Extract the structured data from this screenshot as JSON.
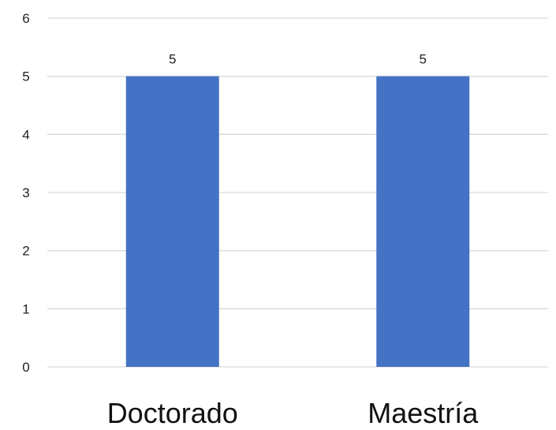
{
  "chart_data": {
    "type": "bar",
    "categories": [
      "Doctorado",
      "Maestría"
    ],
    "values": [
      5,
      5
    ],
    "data_labels": [
      "5",
      "5"
    ],
    "ylim": [
      0,
      6
    ],
    "yticks": [
      "0",
      "1",
      "2",
      "3",
      "4",
      "5",
      "6"
    ],
    "grid": true,
    "legend": "none",
    "bar_color": "#4472C4",
    "gridline_color": "#D9D9D9"
  }
}
